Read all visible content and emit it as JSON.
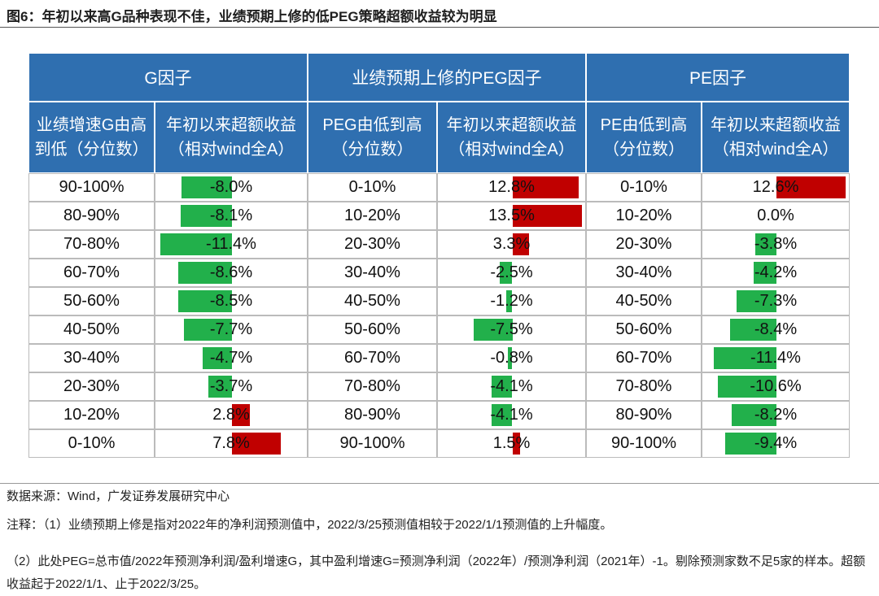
{
  "title": "图6：年初以来高G品种表现不佳，业绩预期上修的低PEG策略超额收益较为明显",
  "table": {
    "groups": [
      "G因子",
      "业绩预期上修的PEG因子",
      "PE因子"
    ],
    "columns": [
      [
        "业绩增速G由高",
        "到低（分位数）"
      ],
      [
        "年初以来超额收益",
        "（相对wind全A）"
      ],
      [
        "PEG由低到高",
        "（分位数）"
      ],
      [
        "年初以来超额收益",
        "（相对wind全A）"
      ],
      [
        "PE由低到高",
        "（分位数）"
      ],
      [
        "年初以来超额收益",
        "（相对wind全A）"
      ]
    ],
    "rows": [
      [
        "90-100%",
        "-8.0%",
        "0-10%",
        "12.8%",
        "0-10%",
        "12.6%"
      ],
      [
        "80-90%",
        "-8.1%",
        "10-20%",
        "13.5%",
        "10-20%",
        "0.0%"
      ],
      [
        "70-80%",
        "-11.4%",
        "20-30%",
        "3.3%",
        "20-30%",
        "-3.8%"
      ],
      [
        "60-70%",
        "-8.6%",
        "30-40%",
        "-2.5%",
        "30-40%",
        "-4.2%"
      ],
      [
        "50-60%",
        "-8.5%",
        "40-50%",
        "-1.2%",
        "40-50%",
        "-7.3%"
      ],
      [
        "40-50%",
        "-7.7%",
        "50-60%",
        "-7.5%",
        "50-60%",
        "-8.4%"
      ],
      [
        "30-40%",
        "-4.7%",
        "60-70%",
        "-0.8%",
        "60-70%",
        "-11.4%"
      ],
      [
        "20-30%",
        "-3.7%",
        "70-80%",
        "-4.1%",
        "70-80%",
        "-10.6%"
      ],
      [
        "10-20%",
        "2.8%",
        "80-90%",
        "-4.1%",
        "80-90%",
        "-8.2%"
      ],
      [
        "0-10%",
        "7.8%",
        "90-100%",
        "1.5%",
        "90-100%",
        "-9.4%"
      ]
    ]
  },
  "notes": {
    "source": "数据来源：Wind，广发证券发展研究中心",
    "note1": "注释：（1）业绩预期上修是指对2022年的净利润预测值中，2022/3/25预测值相较于2022/1/1预测值的上升幅度。",
    "note2": "（2）此处PEG=总市值/2022年预测净利润/盈利增速G，其中盈利增速G=预测净利润（2022年）/预测净利润（2021年）-1。剔除预测家数不足5家的样本。超额收益起于2022/1/1、止于2022/3/25。"
  }
}
